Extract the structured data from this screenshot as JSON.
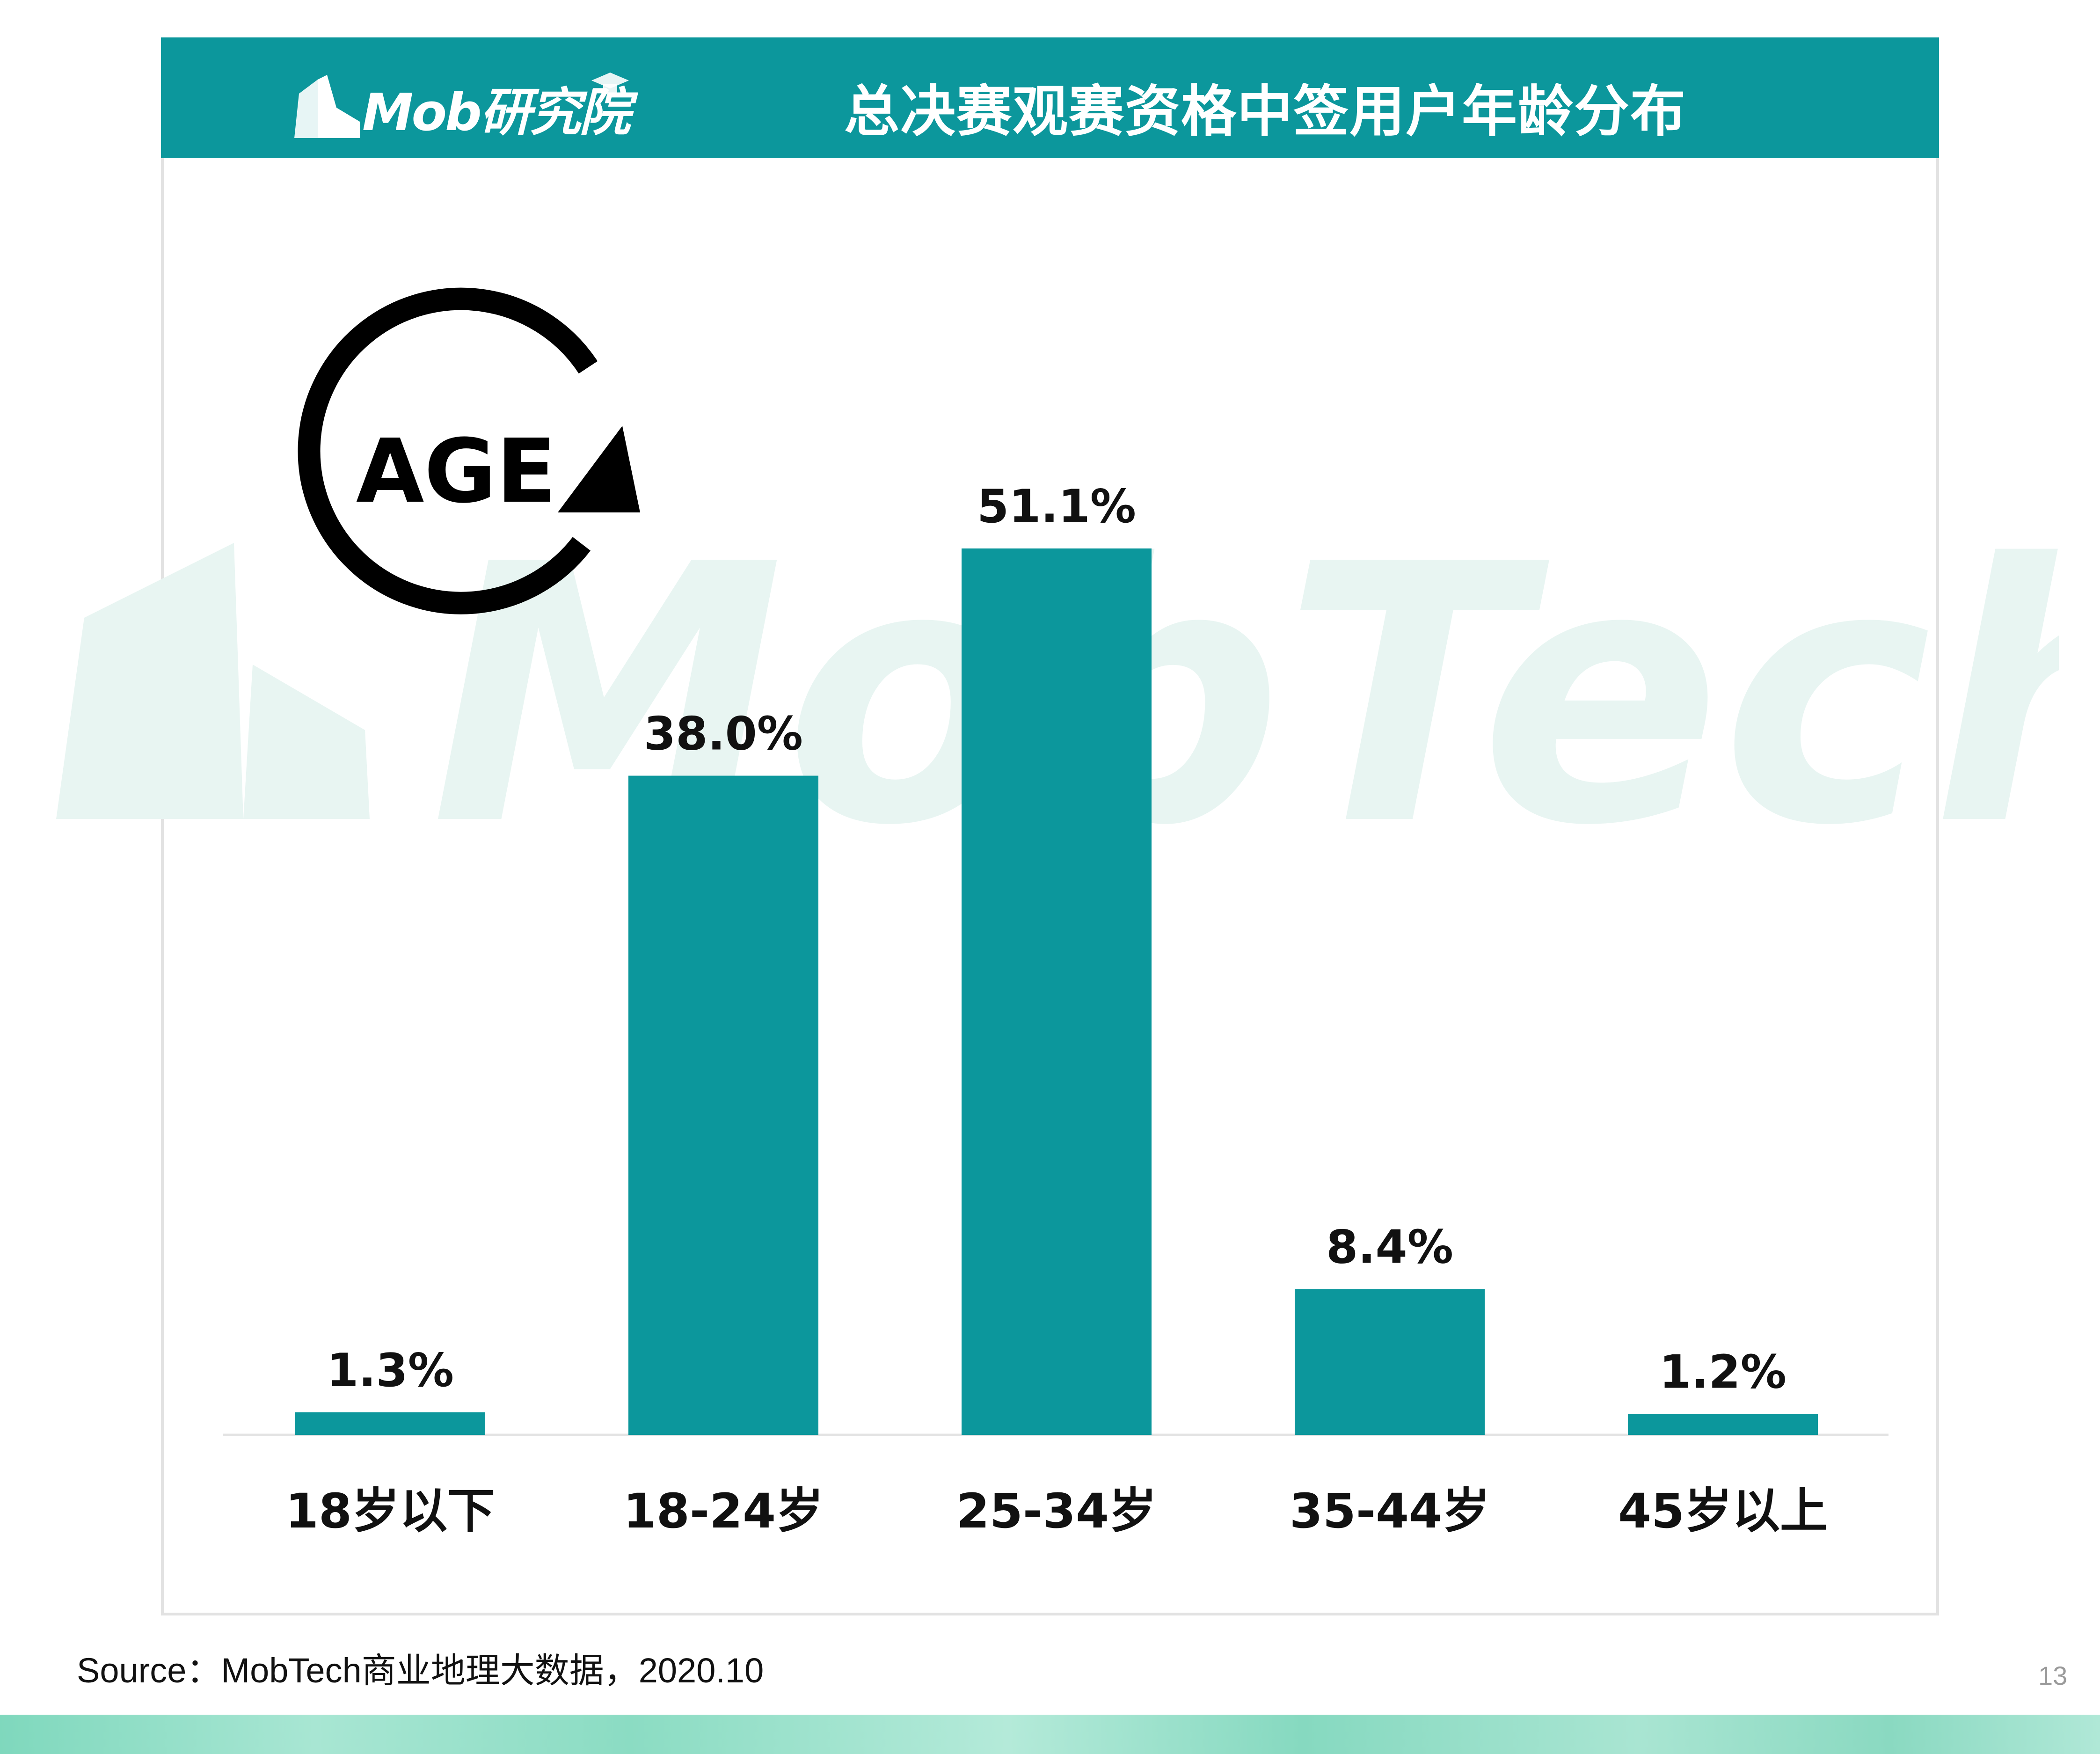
{
  "header": {
    "logo_text": "Mob研究院",
    "title": "总决赛观赛资格中签用户年龄分布"
  },
  "watermark": {
    "text": "MobTech袤博"
  },
  "icon": {
    "name": "age-cycle-icon",
    "label": "AGE"
  },
  "colors": {
    "header_bg": "#0c979c",
    "bar": "#0c979c",
    "watermark": "#e6f4f1"
  },
  "chart_data": {
    "type": "bar",
    "categories": [
      "18岁以下",
      "18-24岁",
      "25-34岁",
      "35-44岁",
      "45岁以上"
    ],
    "values": [
      1.3,
      38.0,
      51.1,
      8.4,
      1.2
    ],
    "value_labels": [
      "1.3%",
      "38.0%",
      "51.1%",
      "8.4%",
      "1.2%"
    ],
    "unit": "%",
    "ylim": [
      0,
      51.1
    ],
    "grid": false,
    "legend": "none"
  },
  "footer": {
    "source": "Source：MobTech商业地理大数据，2020.10",
    "page_number": "13"
  }
}
